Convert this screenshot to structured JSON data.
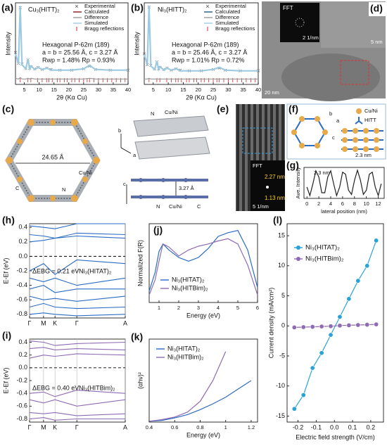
{
  "chart_data": [
    {
      "type": "line",
      "label": "(a)",
      "title": "Cu₃(HITT)₂",
      "x_label": "2θ (Kα Cu)",
      "y_label": "Intensity",
      "x": [
        2,
        3,
        3.6,
        4.2,
        5.5,
        6.2,
        6.8,
        7.3,
        8.5,
        9.6,
        11,
        12.6,
        14,
        17,
        21,
        25,
        27,
        29,
        34,
        40
      ],
      "xlim": [
        2,
        40
      ],
      "xticks": [
        5,
        10,
        15,
        20,
        25,
        30,
        35,
        40
      ],
      "ylim": [
        -15,
        105
      ],
      "series": [
        {
          "name": "Experimental",
          "color": "#666666",
          "marker": "x",
          "values": [
            32,
            16,
            98,
            15,
            9,
            21,
            9,
            11,
            8,
            10,
            7,
            9,
            7,
            6,
            6,
            8,
            12,
            7,
            6,
            6
          ]
        },
        {
          "name": "Calculated",
          "color": "#8b1a1a",
          "values": [
            30,
            15,
            100,
            14,
            8,
            22,
            8,
            12,
            7,
            10,
            7,
            9,
            6,
            6,
            6,
            8,
            13,
            7,
            6,
            6
          ]
        },
        {
          "name": "Difference",
          "color": "#999999",
          "values": [
            -6,
            -7,
            -5,
            -7,
            -7,
            -6,
            -7,
            -6,
            -7,
            -7,
            -7,
            -7,
            -7,
            -7,
            -7,
            -7,
            -6,
            -7,
            -7,
            -7
          ]
        },
        {
          "name": "Simulated",
          "color": "#9ecae1",
          "values": [
            30,
            15,
            100,
            14,
            8,
            22,
            8,
            12,
            7,
            10,
            7,
            9,
            6,
            6,
            6,
            8,
            13,
            7,
            6,
            6
          ]
        }
      ],
      "bragg": {
        "name": "Bragg reflections",
        "color": "#d62728",
        "x": [
          3.6,
          6.2,
          7.2,
          9.5,
          11,
          12.5,
          13.3,
          14.4,
          16.1,
          17,
          18.5,
          19.5,
          21,
          22,
          23.5,
          25,
          26.2,
          27,
          28.5,
          30,
          31.5,
          33,
          34.5,
          36,
          37.5,
          39
        ]
      },
      "notes": [
        "Hexagonal P-62m (189)",
        "a = b = 25.56 Å, c = 3.27 Å",
        "Rwp = 1.48% Rp = 0.93%"
      ]
    },
    {
      "type": "line",
      "label": "(b)",
      "title": "Ni₃(HITT)₂",
      "x_label": "2θ (Kα Cu)",
      "y_label": "Intensity",
      "x": [
        2,
        3,
        3.6,
        4.2,
        5.5,
        6.2,
        6.8,
        7.3,
        8.5,
        9.6,
        11,
        12.6,
        14,
        17,
        21,
        25,
        27,
        29,
        34,
        40
      ],
      "xlim": [
        2,
        40
      ],
      "xticks": [
        5,
        10,
        15,
        20,
        25,
        30,
        35,
        40
      ],
      "ylim": [
        -15,
        105
      ],
      "series": [
        {
          "name": "Experimental",
          "color": "#666666",
          "marker": "x",
          "values": [
            30,
            14,
            99,
            13,
            8,
            18,
            8,
            10,
            7,
            9,
            6,
            8,
            6,
            5,
            5,
            7,
            9,
            6,
            5,
            5
          ]
        },
        {
          "name": "Calculated",
          "color": "#1a5c7a",
          "values": [
            29,
            14,
            100,
            12,
            7,
            19,
            7,
            11,
            6,
            9,
            6,
            8,
            5,
            5,
            5,
            7,
            10,
            6,
            5,
            5
          ]
        },
        {
          "name": "Difference",
          "color": "#999999",
          "values": [
            -7,
            -7,
            -6,
            -7,
            -7,
            -7,
            -7,
            -7,
            -7,
            -7,
            -7,
            -7,
            -7,
            -7,
            -7,
            -7,
            -7,
            -7,
            -7,
            -7
          ]
        },
        {
          "name": "Simulated",
          "color": "#9ecae1",
          "values": [
            29,
            14,
            100,
            12,
            7,
            19,
            7,
            11,
            6,
            9,
            6,
            8,
            5,
            5,
            5,
            7,
            10,
            6,
            5,
            5
          ]
        }
      ],
      "bragg": {
        "name": "Bragg reflections",
        "color": "#d62728",
        "x": [
          3.6,
          6.2,
          7.2,
          9.5,
          11,
          12.5,
          13.3,
          14.4,
          16.1,
          17,
          18.5,
          19.5,
          21,
          22,
          23.5,
          25,
          26.2,
          27,
          28.5,
          30,
          31.5,
          33,
          34.5,
          36,
          37.5,
          39
        ]
      },
      "notes": [
        "Hexagonal P-62m (189)",
        "a = b = 25.46 Å, c = 3.27 Å",
        "Rwp = 1.01% Rp = 0.72%"
      ]
    },
    {
      "type": "line",
      "label": "(g)",
      "x_label": "lateral position (nm)",
      "y_label": "Ave. Intensity",
      "x": [
        0,
        0.5,
        1,
        1.5,
        2,
        2.5,
        3,
        3.5,
        4,
        4.5,
        5,
        5.5,
        6,
        6.5,
        7,
        7.5,
        8,
        8.5,
        9,
        9.5,
        10,
        10.5,
        11,
        11.5,
        12,
        12.5
      ],
      "xlim": [
        -0.5,
        13
      ],
      "xticks": [
        0,
        2,
        4,
        6,
        8,
        10,
        12
      ],
      "ylim": [
        -0.05,
        1.05
      ],
      "series": [
        {
          "color": "#222222",
          "values": [
            0.35,
            0.05,
            0.47,
            0.93,
            0.71,
            0.15,
            0.15,
            0.71,
            0.93,
            0.47,
            0.05,
            0.35,
            0.88,
            0.81,
            0.24,
            0.09,
            0.59,
            0.95,
            0.6,
            0.09,
            0.24,
            0.81,
            0.88,
            0.35,
            0.05,
            0.47
          ]
        }
      ],
      "notes": [
        "2.3 nm"
      ]
    },
    {
      "type": "bands",
      "label": "(h)",
      "y_label": "E-Ef (eV)",
      "x": [
        0,
        0.146,
        0.266,
        0.494,
        1
      ],
      "xlim": [
        0,
        1
      ],
      "xticks": [
        {
          "value": 0,
          "label": "Γ"
        },
        {
          "value": 0.146,
          "label": "M"
        },
        {
          "value": 0.266,
          "label": "K"
        },
        {
          "value": 0.494,
          "label": "Γ"
        },
        {
          "value": 1,
          "label": "A"
        }
      ],
      "grid_x": true,
      "ylim": [
        -0.85,
        0.45
      ],
      "yticks": [
        -0.8,
        -0.6,
        -0.4,
        -0.2,
        {
          "value": 0,
          "label": "0.0"
        },
        0.2,
        0.4
      ],
      "fermi_level": 0,
      "color": "#2b6cc4",
      "bands": [
        [
          0.42,
          0.4,
          0.38,
          0.45,
          0.45
        ],
        [
          0.3,
          0.28,
          0.25,
          0.32,
          0.3
        ],
        [
          0.2,
          0.22,
          0.25,
          0.28,
          0.25
        ],
        [
          -0.2,
          -0.1,
          -0.25,
          -0.05,
          -0.1
        ],
        [
          -0.3,
          -0.35,
          -0.3,
          -0.4,
          -0.3
        ],
        [
          -0.45,
          -0.4,
          -0.5,
          -0.45,
          -0.45
        ],
        [
          -0.55,
          -0.6,
          -0.58,
          -0.62,
          -0.55
        ],
        [
          -0.7,
          -0.65,
          -0.7,
          -0.72,
          -0.7
        ],
        [
          -0.8,
          -0.78,
          -0.8,
          -0.82,
          -0.8
        ]
      ],
      "notes": [
        "ΔEBG = 0.21 eV",
        "Ni₃(HITAT)₂"
      ]
    },
    {
      "type": "line",
      "label": "(j)",
      "x_label": "Energy (eV)",
      "y_label": "Normalized F(R)",
      "x": [
        0.5,
        0.8,
        1,
        1.2,
        1.5,
        2,
        2.5,
        3,
        3.5,
        4,
        4.5,
        5,
        5.5,
        6
      ],
      "xlim": [
        0.5,
        6
      ],
      "xticks": [
        1,
        2,
        3,
        4,
        5,
        6
      ],
      "ylim": [
        0,
        1.05
      ],
      "series": [
        {
          "name": "Ni₃(HITAT)₂",
          "color": "#2b6cc4",
          "values": [
            0.15,
            0.4,
            0.68,
            0.78,
            0.7,
            0.6,
            0.55,
            0.6,
            0.72,
            0.88,
            0.93,
            0.96,
            0.7,
            0.2
          ]
        },
        {
          "name": "Ni₃(HITBim)₂",
          "color": "#8e6bb3",
          "values": [
            0.1,
            0.3,
            0.55,
            0.78,
            0.74,
            0.62,
            0.7,
            0.75,
            0.78,
            0.82,
            0.85,
            0.78,
            0.5,
            0.1
          ]
        }
      ]
    },
    {
      "type": "scatter",
      "label": "(l)",
      "x_label": "Electric field strength (V/cm)",
      "y_label": "Current density (mA/cm²)",
      "xlim": [
        -0.26,
        0.27
      ],
      "xticks": [
        -0.2,
        -0.1,
        {
          "value": 0,
          "label": "0.0"
        },
        0.1,
        0.2
      ],
      "ylim": [
        -16,
        17
      ],
      "yticks": [
        -15,
        -10,
        -5,
        0,
        5,
        10,
        15
      ],
      "series": [
        {
          "name": "Ni₃(HITAT)₂",
          "color": "#29a3d6",
          "marker": "o",
          "x": [
            -0.22,
            -0.17,
            -0.12,
            -0.07,
            -0.02,
            0.03,
            0.08,
            0.13,
            0.18,
            0.23
          ],
          "values": [
            -13.8,
            -11.5,
            -7,
            -4.5,
            -1.5,
            1.5,
            4.5,
            7.5,
            10,
            14.2
          ]
        },
        {
          "name": "Ni₃(HITBim)₂",
          "color": "#8e6bb3",
          "marker": "o",
          "x": [
            -0.22,
            -0.17,
            -0.12,
            -0.07,
            -0.02,
            0.03,
            0.08,
            0.13,
            0.18,
            0.23
          ],
          "values": [
            -0.25,
            -0.2,
            -0.15,
            -0.1,
            -0.05,
            0.05,
            0.1,
            0.15,
            0.2,
            0.25
          ]
        }
      ]
    },
    {
      "type": "bands",
      "label": "(i)",
      "y_label": "E-Ef (eV)",
      "x": [
        0,
        0.146,
        0.266,
        0.494,
        1
      ],
      "xlim": [
        0,
        1
      ],
      "xticks": [
        {
          "value": 0,
          "label": "Γ"
        },
        {
          "value": 0.146,
          "label": "M"
        },
        {
          "value": 0.266,
          "label": "K"
        },
        {
          "value": 0.494,
          "label": "Γ"
        },
        {
          "value": 1,
          "label": "A"
        }
      ],
      "grid_x": true,
      "ylim": [
        -0.85,
        0.45
      ],
      "yticks": [
        -0.8,
        -0.6,
        -0.4,
        -0.2,
        {
          "value": 0,
          "label": "0.0"
        },
        0.2,
        0.4
      ],
      "fermi_level": 0,
      "color": "#8e6bb3",
      "bands": [
        [
          0.42,
          0.4,
          0.35,
          0.38,
          0.4
        ],
        [
          0.3,
          0.32,
          0.28,
          0.3,
          0.28
        ],
        [
          0.15,
          0.2,
          0.18,
          0.22,
          0.2
        ],
        [
          -0.4,
          -0.38,
          -0.45,
          -0.35,
          -0.4
        ],
        [
          -0.5,
          -0.55,
          -0.5,
          -0.6,
          -0.5
        ],
        [
          -0.7,
          -0.72,
          -0.7,
          -0.75,
          -0.72
        ],
        [
          -0.8,
          -0.78,
          -0.82,
          -0.8,
          -0.8
        ]
      ],
      "notes": [
        "ΔEBG = 0.40 eV",
        "Ni₃(HITBim)₂"
      ]
    },
    {
      "type": "line",
      "label": "(k)",
      "x_label": "Energy (eV)",
      "y_label": "(αhν)²",
      "x": [
        0.4,
        0.5,
        0.6,
        0.7,
        0.8,
        0.9,
        1.0,
        1.1,
        1.2
      ],
      "xlim": [
        0.4,
        1.25
      ],
      "xticks": [
        0.4,
        0.6,
        0.8,
        1.0,
        1.2
      ],
      "ylim": [
        0,
        1
      ],
      "series": [
        {
          "name": "Ni₃(HITAT)₂",
          "color": "#2b6cc4",
          "values": [
            0.01,
            0.02,
            0.05,
            0.09,
            0.15,
            0.22,
            0.3,
            0.4,
            0.5
          ]
        },
        {
          "name": "Ni₃(HITBim)₂",
          "color": "#8e6bb3",
          "values": [
            0.01,
            0.03,
            0.06,
            0.12,
            0.25,
            0.5,
            0.85,
            null,
            null
          ]
        }
      ]
    }
  ],
  "figure": {
    "c": {
      "label": "(c)",
      "pore": "24.65 Å",
      "interlayer": "3.27 Å",
      "metal": "Cu/Ni",
      "n": "N",
      "c_atom": "C",
      "axis_a": "a",
      "axis_b": "b",
      "axis_c": "c"
    },
    "d": {
      "label": "(d)",
      "fft": "FFT",
      "fft_scale": "2 1/nm",
      "scale_inset": "5 nm",
      "scale": "20 nm"
    },
    "e": {
      "label": "(e)",
      "fft": "FFT",
      "d1": "2.27 nm",
      "d2": "1.13 nm",
      "fft_scale": "5 1/nm"
    },
    "f": {
      "label": "(f)",
      "metal": "Cu/Ni",
      "ligand": "HITT",
      "spacing": "2.3 nm",
      "axis_a": "a",
      "axis_b": "b",
      "axis_c": "c"
    }
  }
}
